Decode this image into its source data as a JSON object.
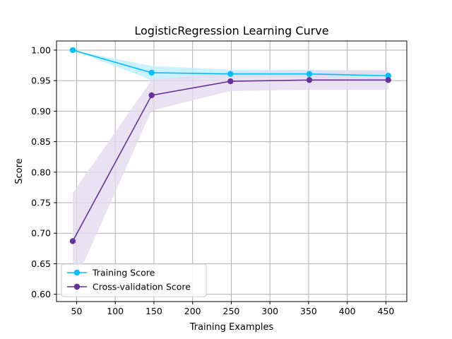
{
  "chart_data": {
    "type": "line",
    "title": "LogisticRegression Learning Curve",
    "xlabel": "Training Examples",
    "ylabel": "Score",
    "xlim": [
      24,
      477
    ],
    "ylim": [
      0.588,
      1.015
    ],
    "xticks": [
      50,
      100,
      150,
      200,
      250,
      300,
      350,
      400,
      450
    ],
    "yticks": [
      0.6,
      0.65,
      0.7,
      0.75,
      0.8,
      0.85,
      0.9,
      0.95,
      1.0
    ],
    "xtick_labels": [
      "50",
      "100",
      "150",
      "200",
      "250",
      "300",
      "350",
      "400",
      "450"
    ],
    "ytick_labels": [
      "0.60",
      "0.65",
      "0.70",
      "0.75",
      "0.80",
      "0.85",
      "0.90",
      "0.95",
      "1.00"
    ],
    "grid": true,
    "legend_position": "lower-left",
    "x": [
      45,
      147,
      249,
      351,
      453
    ],
    "series": [
      {
        "name": "Training Score",
        "color": "#00bfff",
        "band_color": "#bfefff",
        "values": [
          1.0,
          0.963,
          0.961,
          0.961,
          0.958
        ],
        "upper": [
          1.0,
          0.974,
          0.968,
          0.968,
          0.965
        ],
        "lower": [
          1.0,
          0.951,
          0.955,
          0.955,
          0.951
        ]
      },
      {
        "name": "Cross-validation Score",
        "color": "#663399",
        "band_color": "#e3dbef",
        "values": [
          0.687,
          0.926,
          0.949,
          0.951,
          0.951
        ],
        "upper": [
          0.766,
          0.951,
          0.965,
          0.967,
          0.967
        ],
        "lower": [
          0.611,
          0.901,
          0.933,
          0.935,
          0.935
        ]
      }
    ]
  }
}
